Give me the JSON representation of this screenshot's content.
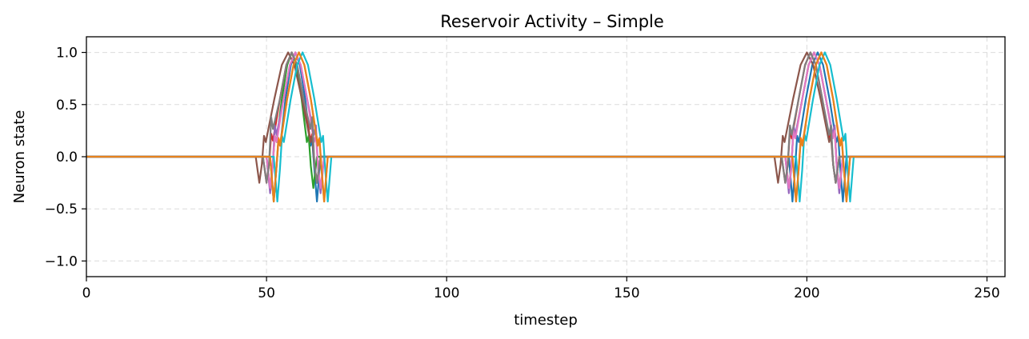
{
  "chart_data": {
    "type": "line",
    "title": "Reservoir Activity – Simple",
    "xlabel": "timestep",
    "ylabel": "Neuron state",
    "xlim": [
      0,
      255
    ],
    "ylim": [
      -1.15,
      1.15
    ],
    "xticks": [
      0,
      50,
      100,
      150,
      200,
      250
    ],
    "yticks": [
      -1.0,
      -0.5,
      0.0,
      0.5,
      1.0
    ],
    "ytick_labels": [
      "−1.0",
      "−0.5",
      "0.0",
      "0.5",
      "1.0"
    ],
    "grid": true,
    "pulse_width": 8,
    "series": [
      {
        "color": "#1f77b4",
        "pulses": [
          {
            "start": 53,
            "peak": 58,
            "dip": -0.43,
            "bump": 0.15
          },
          {
            "start": 197,
            "peak": 203,
            "dip": -0.43,
            "bump": 0.2
          }
        ]
      },
      {
        "color": "#ff7f0e",
        "pulses": [
          {
            "start": 53,
            "peak": 59,
            "dip": -0.43,
            "bump": 0.18
          },
          {
            "start": 198,
            "peak": 204,
            "dip": -0.43,
            "bump": 0.18
          }
        ]
      },
      {
        "color": "#2ca02c",
        "pulses": [
          {
            "start": 52,
            "peak": 57,
            "dip": -0.3,
            "bump": 0.2
          },
          {
            "start": 196,
            "peak": 202,
            "dip": -0.3,
            "bump": 0.28
          }
        ]
      },
      {
        "color": "#d62728",
        "pulses": [
          {
            "start": 51,
            "peak": 57,
            "dip": -0.25,
            "bump": 0.22
          },
          {
            "start": 195,
            "peak": 201,
            "dip": -0.25,
            "bump": 0.25
          }
        ]
      },
      {
        "color": "#9467bd",
        "pulses": [
          {
            "start": 52,
            "peak": 58,
            "dip": -0.35,
            "bump": 0.3
          },
          {
            "start": 196,
            "peak": 202,
            "dip": -0.35,
            "bump": 0.3
          }
        ]
      },
      {
        "color": "#8c564b",
        "pulses": [
          {
            "start": 49,
            "peak": 56,
            "dip": -0.25,
            "bump": 0.2
          },
          {
            "start": 193,
            "peak": 200,
            "dip": -0.25,
            "bump": 0.2
          }
        ]
      },
      {
        "color": "#e377c2",
        "pulses": [
          {
            "start": 52,
            "peak": 58,
            "dip": -0.3,
            "bump": 0.2
          },
          {
            "start": 196,
            "peak": 202,
            "dip": -0.3,
            "bump": 0.25
          }
        ]
      },
      {
        "color": "#7f7f7f",
        "pulses": [
          {
            "start": 51,
            "peak": 57,
            "dip": -0.25,
            "bump": 0.38
          },
          {
            "start": 195,
            "peak": 201,
            "dip": -0.25,
            "bump": 0.3
          }
        ]
      },
      {
        "color": "#17becf",
        "pulses": [
          {
            "start": 54,
            "peak": 60,
            "dip": -0.43,
            "bump": 0.2
          },
          {
            "start": 199,
            "peak": 205,
            "dip": -0.43,
            "bump": 0.22
          }
        ]
      },
      {
        "color": "#e6821e",
        "pulses": [
          {
            "start": 53,
            "peak": 59,
            "dip": -0.43,
            "bump": 0.15
          },
          {
            "start": 198,
            "peak": 204,
            "dip": -0.43,
            "bump": 0.15
          }
        ]
      }
    ]
  }
}
